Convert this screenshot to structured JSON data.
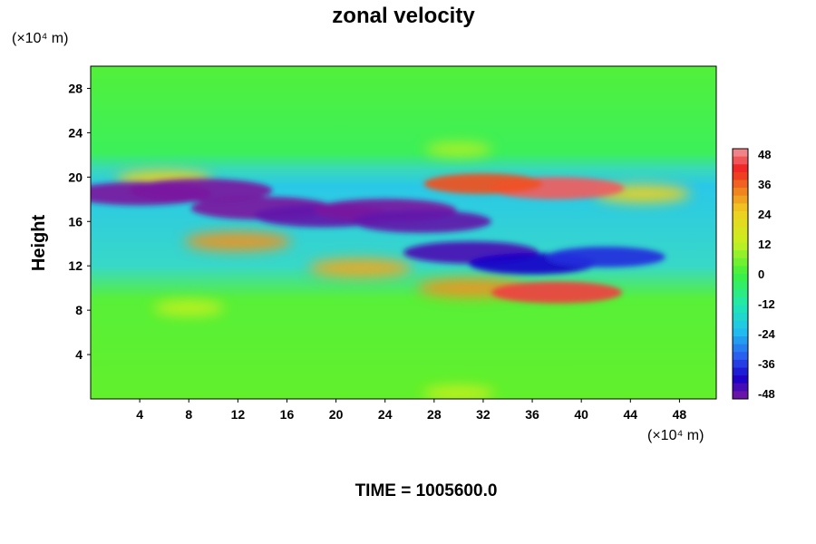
{
  "chart_data": {
    "type": "heatmap",
    "title": "zonal velocity",
    "ylabel": "Height",
    "xlabel": "",
    "x_units": "(×10⁴ m)",
    "y_units": "(×10⁴ m)",
    "xlim": [
      0,
      51
    ],
    "ylim": [
      0,
      30
    ],
    "x_ticks": [
      4,
      8,
      12,
      16,
      20,
      24,
      28,
      32,
      36,
      40,
      44,
      48
    ],
    "y_ticks": [
      4,
      8,
      12,
      16,
      20,
      24,
      28
    ],
    "colorbar": {
      "ticks": [
        48,
        36,
        24,
        12,
        0,
        -12,
        -24,
        -36,
        -48
      ],
      "range": [
        -48,
        48
      ]
    },
    "features": [
      {
        "x": 4,
        "y": 18.5,
        "value": -48
      },
      {
        "x": 9,
        "y": 18.8,
        "value": -48
      },
      {
        "x": 14,
        "y": 17.2,
        "value": -48
      },
      {
        "x": 19,
        "y": 16.5,
        "value": -46
      },
      {
        "x": 24,
        "y": 17.0,
        "value": -48
      },
      {
        "x": 27,
        "y": 16.0,
        "value": -46
      },
      {
        "x": 31,
        "y": 13.2,
        "value": -44
      },
      {
        "x": 36,
        "y": 12.2,
        "value": -40
      },
      {
        "x": 42,
        "y": 12.8,
        "value": -36
      },
      {
        "x": 38,
        "y": 19.0,
        "value": 44
      },
      {
        "x": 32,
        "y": 19.4,
        "value": 36
      },
      {
        "x": 45,
        "y": 18.5,
        "value": 24
      },
      {
        "x": 38,
        "y": 9.6,
        "value": 42
      },
      {
        "x": 31,
        "y": 10.0,
        "value": 30
      },
      {
        "x": 22,
        "y": 11.8,
        "value": 28
      },
      {
        "x": 12,
        "y": 14.2,
        "value": 30
      },
      {
        "x": 6,
        "y": 19.8,
        "value": 24
      },
      {
        "x": 8,
        "y": 8.2,
        "value": 12
      },
      {
        "x": 30,
        "y": 0.5,
        "value": 12
      },
      {
        "x": 30,
        "y": 22.5,
        "value": 10
      }
    ]
  },
  "footer": "TIME = 1005600.0"
}
